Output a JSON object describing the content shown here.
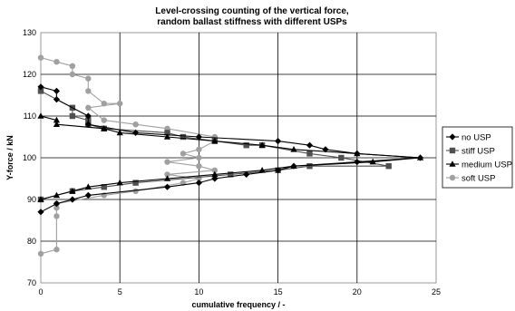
{
  "chart_data": {
    "type": "line",
    "title": [
      "Level-crossing counting of the vertical force,",
      "random ballast stiffness with different USPs"
    ],
    "xlabel": "cumulative frequency / -",
    "ylabel": "Y-force / kN",
    "xlim": [
      0,
      25
    ],
    "ylim": [
      70,
      130
    ],
    "xticks": [
      0,
      5,
      10,
      15,
      20,
      25
    ],
    "yticks": [
      70,
      80,
      90,
      100,
      110,
      120,
      130
    ],
    "grid": true,
    "legend": "right",
    "series": [
      {
        "name": "no USP",
        "marker": "diamond",
        "color": "#000000",
        "points": [
          [
            0,
            117
          ],
          [
            1,
            116
          ],
          [
            1,
            114
          ],
          [
            3,
            110
          ],
          [
            3,
            108
          ],
          [
            6,
            106
          ],
          [
            10,
            105
          ],
          [
            15,
            104
          ],
          [
            17,
            103
          ],
          [
            18,
            102
          ],
          [
            20,
            101
          ],
          [
            24,
            100
          ],
          [
            20,
            99
          ],
          [
            16,
            98
          ],
          [
            15,
            97
          ],
          [
            13,
            96
          ],
          [
            11,
            95
          ],
          [
            10,
            94
          ],
          [
            8,
            93
          ],
          [
            3,
            91
          ],
          [
            2,
            90
          ],
          [
            1,
            89
          ],
          [
            0,
            87
          ]
        ]
      },
      {
        "name": "stiff USP",
        "marker": "square",
        "color": "#505050",
        "points": [
          [
            0,
            116
          ],
          [
            2,
            112
          ],
          [
            2,
            110
          ],
          [
            3,
            109
          ],
          [
            3,
            108
          ],
          [
            4,
            107
          ],
          [
            8,
            106
          ],
          [
            9,
            105
          ],
          [
            11,
            104
          ],
          [
            13,
            103
          ],
          [
            14,
            103
          ],
          [
            17,
            101
          ],
          [
            19,
            100
          ],
          [
            22,
            98
          ],
          [
            17,
            98
          ],
          [
            15,
            97
          ],
          [
            12,
            96
          ],
          [
            6,
            94
          ],
          [
            4,
            93
          ],
          [
            2,
            92
          ],
          [
            0,
            90
          ]
        ]
      },
      {
        "name": "medium USP",
        "marker": "triangle",
        "color": "#000000",
        "points": [
          [
            0,
            110
          ],
          [
            1,
            109
          ],
          [
            1,
            108
          ],
          [
            4,
            107
          ],
          [
            5,
            106
          ],
          [
            8,
            105
          ],
          [
            11,
            104
          ],
          [
            14,
            103
          ],
          [
            16,
            102
          ],
          [
            20,
            101
          ],
          [
            24,
            100
          ],
          [
            21,
            99
          ],
          [
            16,
            98
          ],
          [
            14,
            97
          ],
          [
            11,
            96
          ],
          [
            8,
            95
          ],
          [
            5,
            94
          ],
          [
            3,
            93
          ],
          [
            2,
            92
          ],
          [
            1,
            91
          ],
          [
            0,
            90
          ]
        ]
      },
      {
        "name": "soft USP",
        "marker": "circle",
        "color": "#a0a0a0",
        "points": [
          [
            0,
            124
          ],
          [
            1,
            123
          ],
          [
            2,
            122
          ],
          [
            2,
            120
          ],
          [
            3,
            119
          ],
          [
            3,
            116
          ],
          [
            4,
            113
          ],
          [
            5,
            113
          ],
          [
            3,
            112
          ],
          [
            4,
            109
          ],
          [
            6,
            108
          ],
          [
            8,
            107
          ],
          [
            11,
            105
          ],
          [
            11,
            104
          ],
          [
            10,
            102
          ],
          [
            9,
            101
          ],
          [
            10,
            100
          ],
          [
            8,
            99
          ],
          [
            10,
            98
          ],
          [
            11,
            97
          ],
          [
            8,
            96
          ],
          [
            10,
            95
          ],
          [
            9,
            94
          ],
          [
            6,
            92
          ],
          [
            4,
            91
          ],
          [
            1,
            89
          ],
          [
            1,
            88
          ],
          [
            1,
            86
          ],
          [
            1,
            78
          ],
          [
            0,
            77
          ]
        ]
      }
    ]
  }
}
